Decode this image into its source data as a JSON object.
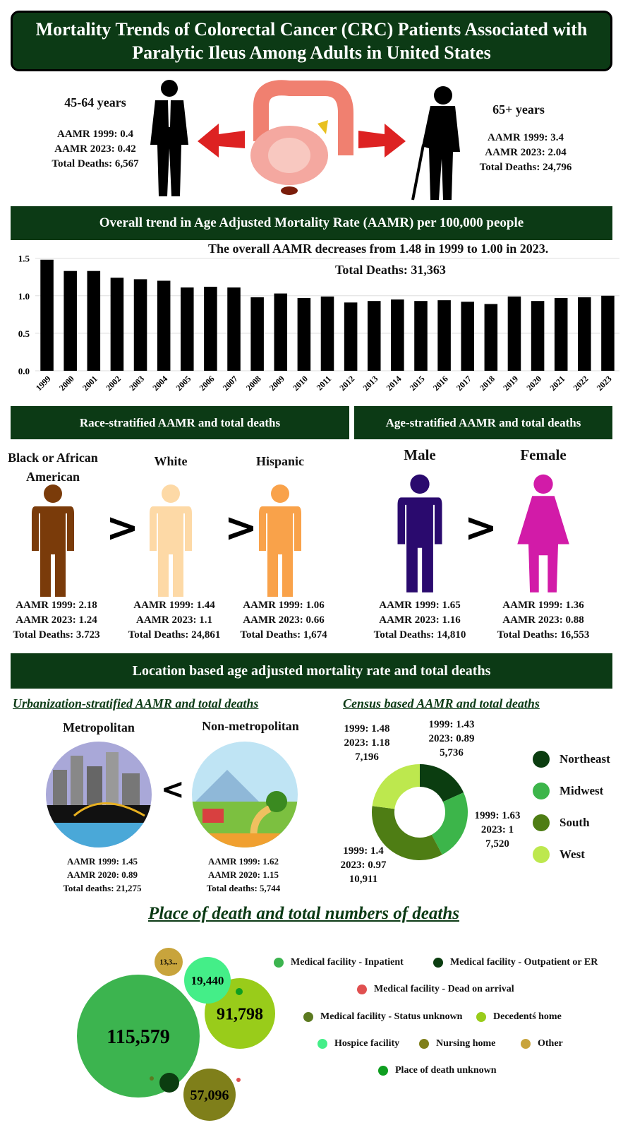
{
  "title": "Mortality Trends of Colorectal Cancer (CRC) Patients Associated with Paralytic Ileus Among Adults in United States",
  "age_groups": [
    {
      "label": "45-64 years",
      "aamr_1999": "AAMR 1999: 0.4",
      "aamr_2023": "AAMR 2023: 0.42",
      "deaths": "Total Deaths: 6,567"
    },
    {
      "label": "65+ years",
      "aamr_1999": "AAMR 1999: 3.4",
      "aamr_2023": "AAMR 2023: 2.04",
      "deaths": "Total Deaths: 24,796"
    }
  ],
  "overall_header": "Overall trend in Age Adjusted Mortality Rate (AAMR) per 100,000 people",
  "chart_data": {
    "type": "bar",
    "annotation": "The overall AAMR decreases from 1.48 in 1999 to 1.00 in 2023.",
    "annotation2": "Total Deaths: 31,363",
    "categories": [
      "1999",
      "2000",
      "2001",
      "2002",
      "2003",
      "2004",
      "2005",
      "2006",
      "2007",
      "2008",
      "2009",
      "2010",
      "2011",
      "2012",
      "2013",
      "2014",
      "2015",
      "2016",
      "2017",
      "2018",
      "2019",
      "2020",
      "2021",
      "2022",
      "2023"
    ],
    "values": [
      1.48,
      1.33,
      1.33,
      1.24,
      1.22,
      1.2,
      1.11,
      1.12,
      1.11,
      0.98,
      1.03,
      0.97,
      0.99,
      0.91,
      0.93,
      0.95,
      0.93,
      0.94,
      0.92,
      0.89,
      0.99,
      0.93,
      0.97,
      0.98,
      1.0
    ],
    "yticks": [
      "0.0",
      "0.5",
      "1.0",
      "1.5"
    ],
    "ylim": [
      0,
      1.6
    ],
    "grid": true,
    "bar_color": "#000000"
  },
  "race_header": "Race-stratified AAMR and total deaths",
  "sex_header": "Age-stratified AAMR and total deaths",
  "races": [
    {
      "label": "Black or African American",
      "color": "#7a3b0a",
      "aamr_1999": "AAMR 1999: 2.18",
      "aamr_2023": "AAMR 2023: 1.24",
      "deaths": "Total Deaths: 3.723"
    },
    {
      "label": "White",
      "color": "#fdd9a6",
      "aamr_1999": "AAMR 1999: 1.44",
      "aamr_2023": "AAMR 2023: 1.1",
      "deaths": "Total Deaths: 24,861"
    },
    {
      "label": "Hispanic",
      "color": "#f9a24a",
      "aamr_1999": "AAMR 1999: 1.06",
      "aamr_2023": "AAMR 2023: 0.66",
      "deaths": "Total Deaths: 1,674"
    }
  ],
  "sexes": [
    {
      "label": "Male",
      "color": "#2a0a6e",
      "aamr_1999": "AAMR 1999: 1.65",
      "aamr_2023": "AAMR 2023: 1.16",
      "deaths": "Total Deaths: 14,810"
    },
    {
      "label": "Female",
      "color": "#d21ba8",
      "aamr_1999": "AAMR 1999: 1.36",
      "aamr_2023": "AAMR 2023: 0.88",
      "deaths": "Total Deaths: 16,553"
    }
  ],
  "gt": ">",
  "lt": "<",
  "location_header": "Location based age adjusted mortality rate and total deaths",
  "urban": {
    "title": "Urbanization-stratified AAMR and total deaths",
    "items": [
      {
        "label": "Metropolitan",
        "aamr_1999": "AAMR 1999: 1.45",
        "aamr_2020": "AAMR 2020: 0.89",
        "deaths": "Total deaths: 21,275"
      },
      {
        "label": "Non-metropolitan",
        "aamr_1999": "AAMR 1999: 1.62",
        "aamr_2020": "AAMR 2020: 1.15",
        "deaths": "Total deaths: 5,744"
      }
    ]
  },
  "census": {
    "title": "Census based AAMR and total deaths",
    "regions": [
      {
        "name": "Northeast",
        "color": "#0b3d10",
        "deaths": 5736,
        "l1": "1999: 1.43",
        "l2": "2023: 0.89",
        "l3": "5,736"
      },
      {
        "name": "Midwest",
        "color": "#3cb54a",
        "deaths": 7520,
        "l1": "1999: 1.63",
        "l2": "2023: 1",
        "l3": "7,520"
      },
      {
        "name": "South",
        "color": "#4e7d14",
        "deaths": 10911,
        "l1": "1999: 1.4",
        "l2": "2023: 0.97",
        "l3": "10,911"
      },
      {
        "name": "West",
        "color": "#bde84e",
        "deaths": 7196,
        "l1": "1999: 1.48",
        "l2": "2023: 1.18",
        "l3": "7,196"
      }
    ]
  },
  "place": {
    "title": "Place of death and total numbers of deaths",
    "items": [
      {
        "name": "Medical facility - Inpatient",
        "color": "#3cb44f",
        "label": "115,579"
      },
      {
        "name": "Medical facility - Outpatient or ER",
        "color": "#0b3d10",
        "label": ""
      },
      {
        "name": "Medical facility - Dead on arrival",
        "color": "#e05050",
        "label": ""
      },
      {
        "name": "Medical facility - Status unknown",
        "color": "#5c7a20",
        "label": ""
      },
      {
        "name": "Decedentś home",
        "color": "#99cc1a",
        "label": "91,798"
      },
      {
        "name": "Hospice facility",
        "color": "#44ee88",
        "label": "19,440"
      },
      {
        "name": "Nursing home",
        "color": "#7f7f1a",
        "label": "57,096"
      },
      {
        "name": "Other",
        "color": "#c8a43c",
        "label": "13,3..."
      },
      {
        "name": "Place of death unknown",
        "color": "#0e9e20",
        "label": ""
      }
    ]
  }
}
